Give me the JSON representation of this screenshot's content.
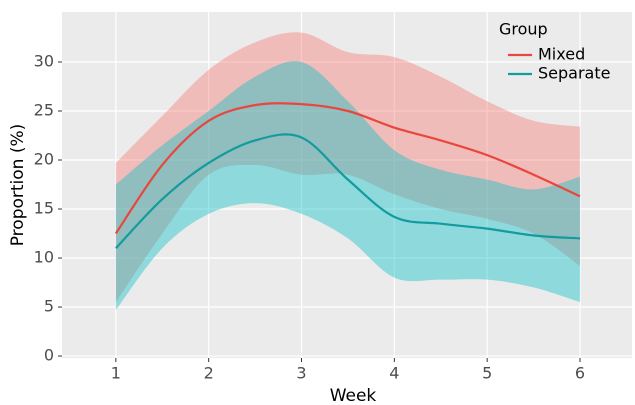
{
  "chart_data": {
    "type": "line",
    "x_label": "Week",
    "y_label": "Proportion (%)",
    "x": [
      1,
      1.5,
      2,
      2.5,
      3,
      3.5,
      4,
      4.5,
      5,
      5.5,
      6
    ],
    "series": [
      {
        "name": "Mixed",
        "color": "#F8766D",
        "line_color": "#e8473d",
        "values": [
          12.5,
          19.5,
          24,
          25.6,
          25.7,
          25,
          23.3,
          22,
          20.5,
          18.5,
          16.3
        ],
        "upper": [
          19.7,
          24.5,
          29.2,
          32,
          33,
          31,
          30.5,
          28.5,
          26,
          24,
          23.4
        ],
        "lower": [
          5.5,
          12.5,
          18.5,
          19.5,
          18.5,
          18.5,
          16.5,
          15,
          14,
          12.5,
          9.2
        ]
      },
      {
        "name": "Separate",
        "color": "#00BFC4",
        "line_color": "#139c9f",
        "values": [
          11,
          16,
          19.7,
          22,
          22.3,
          18,
          14.2,
          13.5,
          13,
          12.3,
          12
        ],
        "upper": [
          17.5,
          21.5,
          25,
          28.5,
          30,
          26,
          21,
          19,
          18,
          17,
          18.3
        ],
        "lower": [
          4.7,
          11,
          14.5,
          15.6,
          14.5,
          12,
          8,
          7.8,
          7.8,
          7,
          5.5
        ]
      }
    ],
    "xlim": [
      0.42,
      6.56
    ],
    "ylim": [
      -0.2,
      35.1
    ],
    "xticks": [
      1,
      2,
      3,
      4,
      5,
      6
    ],
    "yticks": [
      0,
      5,
      10,
      15,
      20,
      25,
      30
    ],
    "grid": true,
    "legend_title": "Group",
    "legend_position": "top-right"
  }
}
